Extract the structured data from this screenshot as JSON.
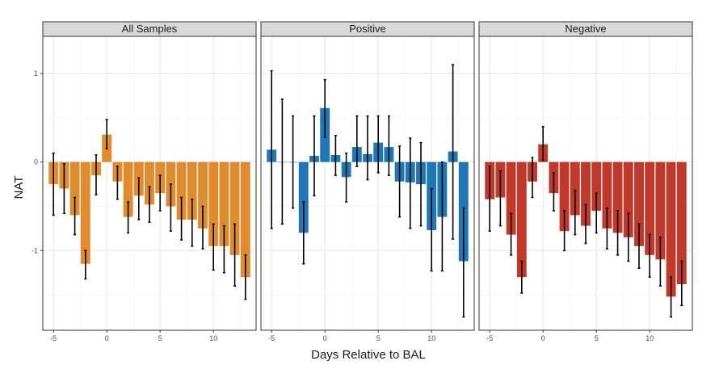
{
  "chart_data": {
    "type": "bar",
    "xlabel": "Days Relative to BAL",
    "ylabel": "NAT",
    "xlim": [
      -6,
      14
    ],
    "ylim": [
      -1.9,
      1.42
    ],
    "x_ticks": [
      -5,
      0,
      5,
      10
    ],
    "y_ticks": [
      -1,
      0,
      1
    ],
    "grid": true,
    "error_bars": true,
    "panels": [
      {
        "name": "All Samples",
        "color": "#E08B2E",
        "x": [
          -5,
          -4,
          -3,
          -2,
          -1,
          0,
          1,
          2,
          3,
          4,
          5,
          6,
          7,
          8,
          9,
          10,
          11,
          12,
          13
        ],
        "values": [
          -0.25,
          -0.3,
          -0.6,
          -1.15,
          -0.15,
          0.31,
          -0.22,
          -0.62,
          -0.38,
          -0.48,
          -0.35,
          -0.5,
          -0.65,
          -0.65,
          -0.75,
          -0.95,
          -0.95,
          -1.05,
          -1.3
        ],
        "err_low": [
          -0.6,
          -0.58,
          -0.82,
          -1.32,
          -0.37,
          0.15,
          -0.42,
          -0.8,
          -0.65,
          -0.68,
          -0.55,
          -0.78,
          -0.88,
          -0.95,
          -0.98,
          -1.22,
          -1.25,
          -1.4,
          -1.55
        ],
        "err_high": [
          0.1,
          -0.02,
          -0.4,
          -1.0,
          0.08,
          0.48,
          -0.05,
          -0.45,
          -0.18,
          -0.28,
          -0.15,
          -0.25,
          -0.4,
          -0.42,
          -0.5,
          -0.7,
          -0.72,
          -0.7,
          -1.05
        ]
      },
      {
        "name": "Positive",
        "color": "#1F77B4",
        "x": [
          -5,
          -4,
          -3,
          -2,
          -1,
          0,
          1,
          2,
          3,
          4,
          5,
          6,
          7,
          8,
          9,
          10,
          11,
          12,
          13
        ],
        "values": [
          0.14,
          0.0,
          0.0,
          -0.8,
          0.07,
          0.61,
          0.08,
          -0.17,
          0.17,
          0.09,
          0.22,
          0.17,
          -0.22,
          -0.23,
          -0.25,
          -0.77,
          -0.62,
          0.12,
          -1.12
        ],
        "err_low": [
          -0.75,
          -0.7,
          -0.52,
          -1.15,
          -0.38,
          0.28,
          -0.15,
          -0.45,
          -0.05,
          -0.2,
          -0.12,
          -0.15,
          -0.62,
          -0.75,
          -0.72,
          -1.23,
          -1.23,
          -0.87,
          -1.75
        ],
        "err_high": [
          1.03,
          0.71,
          0.52,
          -0.45,
          0.52,
          0.93,
          0.3,
          0.1,
          0.52,
          0.52,
          0.52,
          0.52,
          0.18,
          0.27,
          0.22,
          -0.3,
          0.0,
          1.1,
          -0.52
        ]
      },
      {
        "name": "Negative",
        "color": "#C0392B",
        "x": [
          -5,
          -4,
          -3,
          -2,
          -1,
          0,
          1,
          2,
          3,
          4,
          5,
          6,
          7,
          8,
          9,
          10,
          11,
          12,
          13
        ],
        "values": [
          -0.42,
          -0.4,
          -0.82,
          -1.3,
          -0.22,
          0.2,
          -0.35,
          -0.78,
          -0.6,
          -0.72,
          -0.55,
          -0.75,
          -0.8,
          -0.85,
          -0.95,
          -1.05,
          -1.1,
          -1.52,
          -1.38
        ],
        "err_low": [
          -0.78,
          -0.72,
          -1.05,
          -1.48,
          -0.4,
          0.02,
          -0.55,
          -1.0,
          -0.82,
          -0.92,
          -0.8,
          -0.98,
          -1.05,
          -1.12,
          -1.2,
          -1.3,
          -1.4,
          -1.75,
          -1.62
        ],
        "err_high": [
          -0.05,
          -0.1,
          -0.58,
          -1.12,
          0.05,
          0.4,
          -0.12,
          -0.55,
          -0.32,
          -0.48,
          -0.35,
          -0.52,
          -0.55,
          -0.58,
          -0.7,
          -0.82,
          -0.85,
          -1.3,
          -1.12
        ]
      }
    ]
  }
}
